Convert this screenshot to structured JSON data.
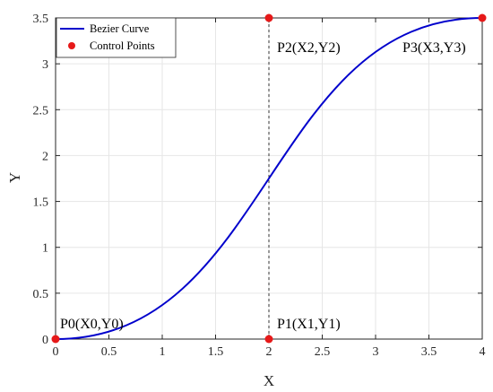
{
  "chart_data": {
    "type": "line",
    "title": "",
    "xlabel": "X",
    "ylabel": "Y",
    "xlim": [
      0,
      4
    ],
    "ylim": [
      0,
      3.5
    ],
    "x_ticks": [
      0,
      0.5,
      1,
      1.5,
      2,
      2.5,
      3,
      3.5,
      4
    ],
    "x_tick_labels": [
      "0",
      "0.5",
      "1",
      "1.5",
      "2",
      "2.5",
      "3",
      "3.5",
      "4"
    ],
    "y_ticks": [
      0,
      0.5,
      1,
      1.5,
      2,
      2.5,
      3,
      3.5
    ],
    "y_tick_labels": [
      "0",
      "0.5",
      "1",
      "1.5",
      "2",
      "2.5",
      "3",
      "3.5"
    ],
    "grid": true,
    "legend_position": "top-left",
    "colors": {
      "curve": "#0000cc",
      "points": "#e61919",
      "guides": "#333333",
      "grid": "#e6e6e6"
    },
    "series": [
      {
        "name": "Bezier Curve",
        "kind": "cubic-bezier",
        "control_x": [
          0,
          2,
          2,
          4
        ],
        "control_y": [
          0,
          0,
          3.5,
          3.5
        ]
      },
      {
        "name": "Control Points",
        "kind": "scatter",
        "x": [
          0,
          2,
          2,
          4
        ],
        "y": [
          0,
          0,
          3.5,
          3.5
        ]
      }
    ],
    "annotations": [
      {
        "text": "P0(X0,Y0)",
        "x": 0,
        "y": 0
      },
      {
        "text": "P1(X1,Y1)",
        "x": 2,
        "y": 0
      },
      {
        "text": "P2(X2,Y2)",
        "x": 2,
        "y": 3.5
      },
      {
        "text": "P3(X3,Y3)",
        "x": 4,
        "y": 3.5
      }
    ]
  }
}
